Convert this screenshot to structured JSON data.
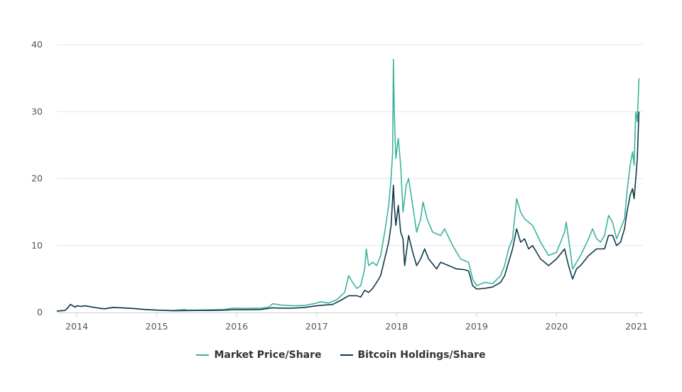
{
  "chart_data": {
    "type": "line",
    "title": "",
    "xlabel": "",
    "ylabel": "",
    "xlim": [
      2013.75,
      2021.08
    ],
    "ylim": [
      0,
      40
    ],
    "grid": true,
    "legend_position": "bottom-center",
    "y_ticks": [
      "0",
      "10",
      "20",
      "30",
      "40"
    ],
    "x_ticks": [
      {
        "value": 2014,
        "label": "2014"
      },
      {
        "value": 2015,
        "label": "2015"
      },
      {
        "value": 2016,
        "label": "2016"
      },
      {
        "value": 2017,
        "label": "2017"
      },
      {
        "value": 2018,
        "label": "2018"
      },
      {
        "value": 2019,
        "label": "2019"
      },
      {
        "value": 2020,
        "label": "2020"
      },
      {
        "value": 2021,
        "label": "2021"
      }
    ],
    "series": [
      {
        "name": "Market Price/Share",
        "color": "#3db39e",
        "points": [
          [
            2013.75,
            0.2
          ],
          [
            2013.8,
            0.25
          ],
          [
            2013.85,
            0.3
          ],
          [
            2013.88,
            0.6
          ],
          [
            2013.92,
            1.2
          ],
          [
            2013.95,
            1.0
          ],
          [
            2013.98,
            0.8
          ],
          [
            2014.0,
            1.0
          ],
          [
            2014.05,
            0.9
          ],
          [
            2014.1,
            1.0
          ],
          [
            2014.2,
            0.8
          ],
          [
            2014.3,
            0.6
          ],
          [
            2014.35,
            0.55
          ],
          [
            2014.45,
            0.75
          ],
          [
            2014.55,
            0.7
          ],
          [
            2014.7,
            0.6
          ],
          [
            2014.85,
            0.45
          ],
          [
            2015.0,
            0.35
          ],
          [
            2015.2,
            0.3
          ],
          [
            2015.35,
            0.45
          ],
          [
            2015.37,
            0.35
          ],
          [
            2015.5,
            0.35
          ],
          [
            2015.7,
            0.4
          ],
          [
            2015.85,
            0.45
          ],
          [
            2015.95,
            0.65
          ],
          [
            2016.1,
            0.6
          ],
          [
            2016.3,
            0.65
          ],
          [
            2016.4,
            0.8
          ],
          [
            2016.45,
            1.3
          ],
          [
            2016.55,
            1.1
          ],
          [
            2016.7,
            1.0
          ],
          [
            2016.85,
            1.05
          ],
          [
            2017.0,
            1.4
          ],
          [
            2017.05,
            1.6
          ],
          [
            2017.15,
            1.4
          ],
          [
            2017.25,
            1.9
          ],
          [
            2017.35,
            3.0
          ],
          [
            2017.4,
            5.5
          ],
          [
            2017.45,
            4.5
          ],
          [
            2017.5,
            3.6
          ],
          [
            2017.55,
            4.0
          ],
          [
            2017.6,
            6.5
          ],
          [
            2017.62,
            9.5
          ],
          [
            2017.65,
            7.0
          ],
          [
            2017.7,
            7.5
          ],
          [
            2017.75,
            7.0
          ],
          [
            2017.8,
            8.5
          ],
          [
            2017.85,
            12.0
          ],
          [
            2017.9,
            16.0
          ],
          [
            2017.93,
            20.0
          ],
          [
            2017.95,
            24.0
          ],
          [
            2017.96,
            37.8
          ],
          [
            2017.97,
            30.0
          ],
          [
            2017.99,
            23.0
          ],
          [
            2018.02,
            26.0
          ],
          [
            2018.05,
            22.0
          ],
          [
            2018.08,
            15.0
          ],
          [
            2018.12,
            19.0
          ],
          [
            2018.15,
            20.0
          ],
          [
            2018.2,
            16.0
          ],
          [
            2018.25,
            12.0
          ],
          [
            2018.3,
            14.0
          ],
          [
            2018.33,
            16.5
          ],
          [
            2018.38,
            14.0
          ],
          [
            2018.45,
            12.0
          ],
          [
            2018.55,
            11.5
          ],
          [
            2018.6,
            12.5
          ],
          [
            2018.7,
            10.0
          ],
          [
            2018.8,
            8.0
          ],
          [
            2018.9,
            7.5
          ],
          [
            2018.95,
            5.0
          ],
          [
            2019.0,
            4.0
          ],
          [
            2019.1,
            4.5
          ],
          [
            2019.2,
            4.3
          ],
          [
            2019.3,
            5.5
          ],
          [
            2019.35,
            7.0
          ],
          [
            2019.4,
            9.5
          ],
          [
            2019.45,
            11.0
          ],
          [
            2019.5,
            17.0
          ],
          [
            2019.55,
            15.0
          ],
          [
            2019.6,
            14.0
          ],
          [
            2019.7,
            13.0
          ],
          [
            2019.8,
            10.5
          ],
          [
            2019.9,
            8.5
          ],
          [
            2020.0,
            9.0
          ],
          [
            2020.1,
            12.0
          ],
          [
            2020.12,
            13.5
          ],
          [
            2020.18,
            8.5
          ],
          [
            2020.2,
            6.5
          ],
          [
            2020.3,
            8.5
          ],
          [
            2020.4,
            11.0
          ],
          [
            2020.45,
            12.5
          ],
          [
            2020.5,
            11.0
          ],
          [
            2020.55,
            10.5
          ],
          [
            2020.6,
            11.5
          ],
          [
            2020.65,
            14.5
          ],
          [
            2020.7,
            13.5
          ],
          [
            2020.75,
            11.0
          ],
          [
            2020.8,
            12.5
          ],
          [
            2020.85,
            14.0
          ],
          [
            2020.88,
            18.0
          ],
          [
            2020.92,
            22.0
          ],
          [
            2020.95,
            24.0
          ],
          [
            2020.97,
            22.0
          ],
          [
            2020.99,
            30.0
          ],
          [
            2021.01,
            28.5
          ],
          [
            2021.03,
            35.0
          ]
        ]
      },
      {
        "name": "Bitcoin Holdings/Share",
        "color": "#0f3a4a",
        "points": [
          [
            2013.75,
            0.2
          ],
          [
            2013.8,
            0.25
          ],
          [
            2013.85,
            0.3
          ],
          [
            2013.88,
            0.6
          ],
          [
            2013.92,
            1.2
          ],
          [
            2013.95,
            1.0
          ],
          [
            2013.98,
            0.8
          ],
          [
            2014.0,
            1.0
          ],
          [
            2014.05,
            0.9
          ],
          [
            2014.1,
            1.0
          ],
          [
            2014.2,
            0.8
          ],
          [
            2014.3,
            0.6
          ],
          [
            2014.35,
            0.55
          ],
          [
            2014.45,
            0.75
          ],
          [
            2014.55,
            0.7
          ],
          [
            2014.7,
            0.6
          ],
          [
            2014.85,
            0.45
          ],
          [
            2015.0,
            0.35
          ],
          [
            2015.2,
            0.25
          ],
          [
            2015.5,
            0.3
          ],
          [
            2015.7,
            0.3
          ],
          [
            2015.85,
            0.35
          ],
          [
            2015.95,
            0.4
          ],
          [
            2016.1,
            0.4
          ],
          [
            2016.3,
            0.45
          ],
          [
            2016.45,
            0.7
          ],
          [
            2016.55,
            0.65
          ],
          [
            2016.7,
            0.65
          ],
          [
            2016.85,
            0.75
          ],
          [
            2017.0,
            1.0
          ],
          [
            2017.1,
            1.1
          ],
          [
            2017.2,
            1.2
          ],
          [
            2017.3,
            1.8
          ],
          [
            2017.4,
            2.5
          ],
          [
            2017.5,
            2.5
          ],
          [
            2017.55,
            2.3
          ],
          [
            2017.6,
            3.3
          ],
          [
            2017.65,
            3.0
          ],
          [
            2017.7,
            3.6
          ],
          [
            2017.75,
            4.5
          ],
          [
            2017.8,
            5.5
          ],
          [
            2017.85,
            8.0
          ],
          [
            2017.9,
            10.5
          ],
          [
            2017.93,
            13.0
          ],
          [
            2017.96,
            19.0
          ],
          [
            2017.97,
            16.0
          ],
          [
            2017.99,
            13.0
          ],
          [
            2018.02,
            16.0
          ],
          [
            2018.05,
            12.0
          ],
          [
            2018.08,
            11.0
          ],
          [
            2018.1,
            7.0
          ],
          [
            2018.15,
            11.5
          ],
          [
            2018.2,
            9.0
          ],
          [
            2018.25,
            7.0
          ],
          [
            2018.3,
            8.0
          ],
          [
            2018.35,
            9.5
          ],
          [
            2018.4,
            8.0
          ],
          [
            2018.5,
            6.5
          ],
          [
            2018.55,
            7.5
          ],
          [
            2018.65,
            7.0
          ],
          [
            2018.75,
            6.5
          ],
          [
            2018.85,
            6.4
          ],
          [
            2018.9,
            6.2
          ],
          [
            2018.95,
            4.0
          ],
          [
            2019.0,
            3.5
          ],
          [
            2019.1,
            3.6
          ],
          [
            2019.2,
            3.8
          ],
          [
            2019.3,
            4.5
          ],
          [
            2019.35,
            5.5
          ],
          [
            2019.4,
            7.5
          ],
          [
            2019.45,
            9.5
          ],
          [
            2019.5,
            12.5
          ],
          [
            2019.55,
            10.5
          ],
          [
            2019.6,
            11.0
          ],
          [
            2019.65,
            9.5
          ],
          [
            2019.7,
            10.0
          ],
          [
            2019.8,
            8.0
          ],
          [
            2019.9,
            7.0
          ],
          [
            2020.0,
            8.0
          ],
          [
            2020.1,
            9.5
          ],
          [
            2020.15,
            7.0
          ],
          [
            2020.2,
            5.0
          ],
          [
            2020.25,
            6.5
          ],
          [
            2020.3,
            7.0
          ],
          [
            2020.4,
            8.5
          ],
          [
            2020.5,
            9.5
          ],
          [
            2020.6,
            9.5
          ],
          [
            2020.65,
            11.5
          ],
          [
            2020.7,
            11.5
          ],
          [
            2020.75,
            10.0
          ],
          [
            2020.8,
            10.5
          ],
          [
            2020.85,
            12.5
          ],
          [
            2020.88,
            15.0
          ],
          [
            2020.92,
            17.5
          ],
          [
            2020.95,
            18.5
          ],
          [
            2020.97,
            17.0
          ],
          [
            2020.99,
            20.0
          ],
          [
            2021.01,
            23.0
          ],
          [
            2021.03,
            30.0
          ]
        ]
      }
    ]
  }
}
